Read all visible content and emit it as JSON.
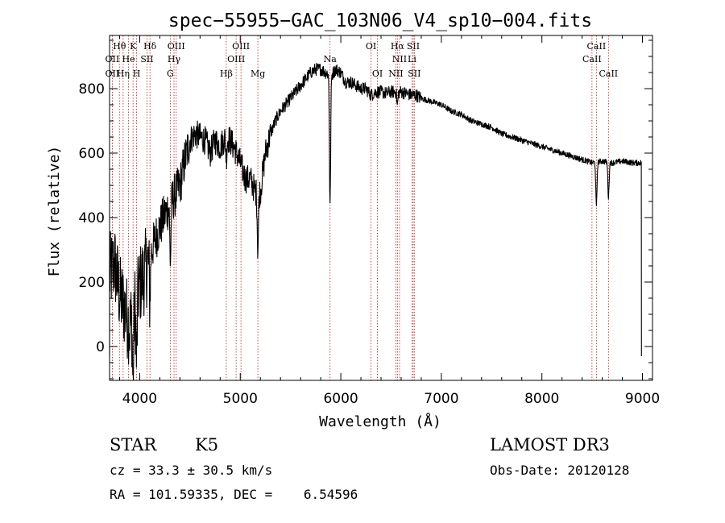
{
  "chart_data": {
    "type": "line",
    "title": "spec−55955−GAC_103N06_V4_sp10−004.fits",
    "xlabel": "Wavelength (Å)",
    "ylabel": "Flux (relative)",
    "xlim": [
      3700,
      9100
    ],
    "ylim": [
      -105,
      965
    ],
    "x_ticks": [
      4000,
      5000,
      6000,
      7000,
      8000,
      9000
    ],
    "x_tick_labels": [
      "4000",
      "5000",
      "6000",
      "7000",
      "8000",
      "9000"
    ],
    "y_ticks": [
      0,
      200,
      400,
      600,
      800
    ],
    "y_tick_labels": [
      "0",
      "200",
      "400",
      "600",
      "800"
    ],
    "series": [
      {
        "name": "flux",
        "x": [
          3700,
          3750,
          3800,
          3850,
          3900,
          3950,
          4000,
          4050,
          4100,
          4150,
          4200,
          4250,
          4300,
          4350,
          4400,
          4450,
          4500,
          4550,
          4600,
          4650,
          4700,
          4750,
          4800,
          4850,
          4900,
          4950,
          5000,
          5050,
          5100,
          5150,
          5200,
          5250,
          5300,
          5350,
          5400,
          5450,
          5500,
          5550,
          5600,
          5650,
          5700,
          5750,
          5800,
          5850,
          5900,
          5950,
          6000,
          6050,
          6100,
          6150,
          6200,
          6250,
          6300,
          6350,
          6400,
          6450,
          6500,
          6550,
          6600,
          6650,
          6700,
          6750,
          6800,
          6900,
          7000,
          7100,
          7200,
          7300,
          7400,
          7500,
          7600,
          7700,
          7800,
          7900,
          8000,
          8100,
          8200,
          8300,
          8400,
          8500,
          8600,
          8700,
          8800,
          8900,
          8990
        ],
        "y": [
          220,
          260,
          160,
          120,
          60,
          130,
          190,
          230,
          280,
          330,
          370,
          410,
          440,
          470,
          500,
          580,
          640,
          660,
          650,
          640,
          600,
          640,
          620,
          650,
          640,
          610,
          570,
          520,
          520,
          480,
          480,
          600,
          660,
          700,
          730,
          750,
          770,
          790,
          810,
          830,
          850,
          860,
          860,
          850,
          840,
          860,
          850,
          820,
          820,
          810,
          800,
          800,
          780,
          790,
          790,
          785,
          790,
          790,
          790,
          785,
          780,
          780,
          770,
          760,
          750,
          730,
          720,
          700,
          690,
          680,
          660,
          650,
          640,
          630,
          620,
          610,
          600,
          590,
          580,
          570,
          575,
          570,
          575,
          570,
          570
        ]
      }
    ],
    "absorption_dips": [
      {
        "x": 3934,
        "depth": 220
      },
      {
        "x": 3969,
        "depth": 200
      },
      {
        "x": 4101,
        "depth": 130
      },
      {
        "x": 4305,
        "depth": 180
      },
      {
        "x": 4861,
        "depth": 60
      },
      {
        "x": 5175,
        "depth": 180
      },
      {
        "x": 5893,
        "depth": 400
      },
      {
        "x": 6563,
        "depth": 40
      },
      {
        "x": 8542,
        "depth": 140
      },
      {
        "x": 8662,
        "depth": 110
      }
    ],
    "line_markers": [
      {
        "label": "Hθ",
        "x": 3798,
        "row": 1
      },
      {
        "label": "OII",
        "x": 3727,
        "row": 2
      },
      {
        "label": "OII",
        "x": 3727,
        "row": 3
      },
      {
        "label": "He",
        "x": 3889,
        "row": 2
      },
      {
        "label": "Hη",
        "x": 3835,
        "row": 3
      },
      {
        "label": "K",
        "x": 3934,
        "row": 1
      },
      {
        "label": "H",
        "x": 3969,
        "row": 3
      },
      {
        "label": "SII",
        "x": 4072,
        "row": 2
      },
      {
        "label": "Hδ",
        "x": 4102,
        "row": 1
      },
      {
        "label": "OIII",
        "x": 4363,
        "row": 1
      },
      {
        "label": "Hγ",
        "x": 4341,
        "row": 2
      },
      {
        "label": "G",
        "x": 4304,
        "row": 3
      },
      {
        "label": "OIII",
        "x": 5007,
        "row": 1
      },
      {
        "label": "OIII",
        "x": 4959,
        "row": 2
      },
      {
        "label": "Hβ",
        "x": 4861,
        "row": 3
      },
      {
        "label": "Mg",
        "x": 5175,
        "row": 3
      },
      {
        "label": "Na",
        "x": 5893,
        "row": 2
      },
      {
        "label": "OI",
        "x": 6300,
        "row": 1
      },
      {
        "label": "OI",
        "x": 6364,
        "row": 3
      },
      {
        "label": "Hα",
        "x": 6563,
        "row": 1
      },
      {
        "label": "SII",
        "x": 6720,
        "row": 1
      },
      {
        "label": "NII",
        "x": 6584,
        "row": 2
      },
      {
        "label": "Li",
        "x": 6708,
        "row": 2
      },
      {
        "label": "NII",
        "x": 6548,
        "row": 3
      },
      {
        "label": "SII",
        "x": 6731,
        "row": 3
      },
      {
        "label": "CaII",
        "x": 8542,
        "row": 1
      },
      {
        "label": "CaII",
        "x": 8498,
        "row": 2
      },
      {
        "label": "CaII",
        "x": 8662,
        "row": 3
      }
    ]
  },
  "info": {
    "object_class": "STAR",
    "subclass": "K5",
    "survey": "LAMOST DR3",
    "redshift": "cz = 33.3 ± 30.5 km/s",
    "obs_date": "Obs-Date: 20120128",
    "coords": "RA = 101.59335, DEC =    6.54596"
  }
}
